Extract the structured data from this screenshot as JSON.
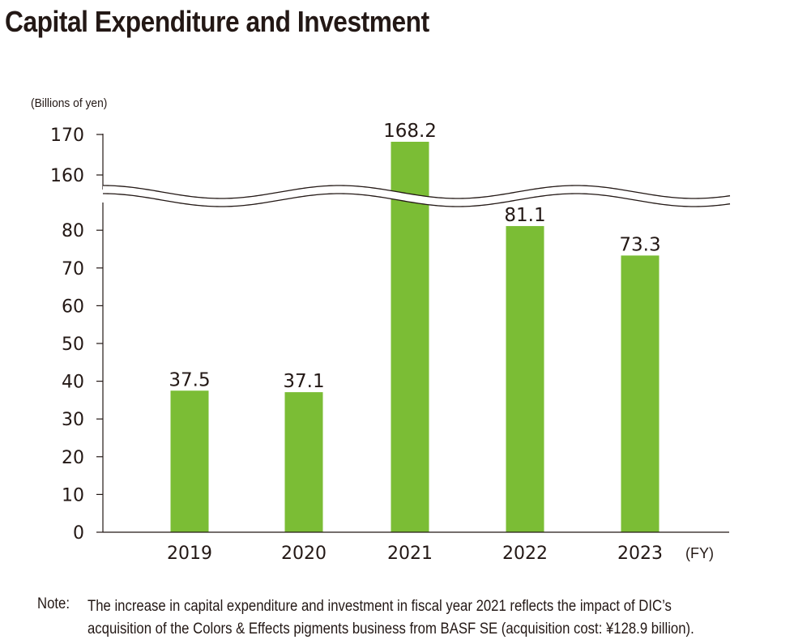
{
  "title": "Capital Expenditure and Investment",
  "note_label": "Note:",
  "note_lines": [
    "The increase in capital expenditure and investment in fiscal year 2021 reflects the impact of DIC’s",
    "acquisition of the Colors & Effects pigments business from BASF SE (acquisition cost: ¥128.9 billion)."
  ],
  "colors": {
    "bar": "#7bbd35",
    "text": "#231815",
    "axis": "#231815"
  },
  "chart_data": {
    "type": "bar",
    "categories": [
      "2019",
      "2020",
      "2021",
      "2022",
      "2023"
    ],
    "values": [
      37.5,
      37.1,
      168.2,
      81.1,
      73.3
    ],
    "value_labels": [
      "37.5",
      "37.1",
      "168.2",
      "81.1",
      "73.3"
    ],
    "ylabel": "(Billions of yen)",
    "xlabel": "(FY)",
    "axis_break": {
      "lower_range": [
        0,
        80
      ],
      "upper_range": [
        160,
        170
      ]
    },
    "yticks_lower": [
      0,
      10,
      20,
      30,
      40,
      50,
      60,
      70,
      80
    ],
    "yticks_upper": [
      160,
      170
    ],
    "grid": false,
    "legend": "none"
  }
}
